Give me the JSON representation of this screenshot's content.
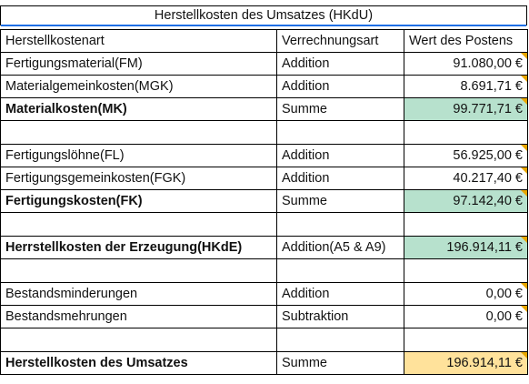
{
  "title": "Herstellkosten des Umsatzes (HKdU)",
  "header": {
    "col0": "Herstellkostenart",
    "col1": "Verrechnungsart",
    "col2": "Wert des Postens"
  },
  "rows": [
    {
      "name": "Fertigungsmaterial(FM)",
      "method": "Addition",
      "value": "91.080,00 €",
      "bold": false,
      "fill": "",
      "note": true
    },
    {
      "name": "Materialgemeinkosten(MGK)",
      "method": "Addition",
      "value": "8.691,71 €",
      "bold": false,
      "fill": "",
      "note": true
    },
    {
      "name": "Materialkosten(MK)",
      "method": "Summe",
      "value": "99.771,71 €",
      "bold": true,
      "fill": "green",
      "note": true
    },
    {
      "name": "",
      "method": "",
      "value": "",
      "bold": false,
      "fill": "",
      "note": false
    },
    {
      "name": "Fertigungslöhne(FL)",
      "method": "Addition",
      "value": "56.925,00 €",
      "bold": false,
      "fill": "",
      "note": true
    },
    {
      "name": "Fertigungsgemeinkosten(FGK)",
      "method": "Addition",
      "value": "40.217,40 €",
      "bold": false,
      "fill": "",
      "note": true
    },
    {
      "name": "Fertigungskosten(FK)",
      "method": "Summe",
      "value": "97.142,40 €",
      "bold": true,
      "fill": "green",
      "note": true
    },
    {
      "name": "",
      "method": "",
      "value": "",
      "bold": false,
      "fill": "",
      "note": false
    },
    {
      "name": "Herrstellkosten der Erzeugung(HKdE)",
      "method": "Addition(A5 & A9)",
      "value": "196.914,11 €",
      "bold": true,
      "fill": "green",
      "note": true
    },
    {
      "name": "",
      "method": "",
      "value": "",
      "bold": false,
      "fill": "",
      "note": false
    },
    {
      "name": "Bestandsminderungen",
      "method": "Addition",
      "value": "0,00 €",
      "bold": false,
      "fill": "",
      "note": true
    },
    {
      "name": "Bestandsmehrungen",
      "method": "Subtraktion",
      "value": "0,00 €",
      "bold": false,
      "fill": "",
      "note": true
    },
    {
      "name": "",
      "method": "",
      "value": "",
      "bold": false,
      "fill": "",
      "note": false
    },
    {
      "name": "Herstellkosten des Umsatzes",
      "method": "Summe",
      "value": "196.914,11 €",
      "bold": true,
      "fill": "yellow",
      "note": true
    }
  ],
  "colors": {
    "green_fill": "#b7e1cd",
    "yellow_fill": "#ffe29b",
    "note_marker": "#e8a600",
    "selection": "#1f6fe5"
  }
}
